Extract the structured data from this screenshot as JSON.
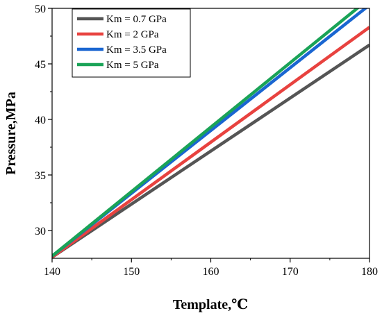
{
  "chart_data": {
    "type": "line",
    "title": "",
    "xlabel": "Template,℃",
    "ylabel": "Pressure,MPa",
    "xlim": [
      140,
      180
    ],
    "ylim": [
      27.5,
      50
    ],
    "xticks": [
      140,
      150,
      160,
      170,
      180
    ],
    "yticks": [
      30,
      35,
      40,
      45,
      50
    ],
    "grid": false,
    "legend_position": "top-left",
    "series": [
      {
        "name": "Km = 0.7 GPa",
        "color": "#555555",
        "x": [
          140,
          180
        ],
        "y": [
          27.6,
          46.7
        ]
      },
      {
        "name": "Km = 2 GPa",
        "color": "#e8423f",
        "x": [
          140,
          180
        ],
        "y": [
          27.6,
          48.3
        ]
      },
      {
        "name": "Km = 3.5 GPa",
        "color": "#1a66d1",
        "x": [
          140,
          180
        ],
        "y": [
          27.7,
          50.3
        ]
      },
      {
        "name": "Km = 5 GPa",
        "color": "#1aa357",
        "x": [
          140,
          180
        ],
        "y": [
          27.7,
          50.9
        ]
      }
    ]
  }
}
